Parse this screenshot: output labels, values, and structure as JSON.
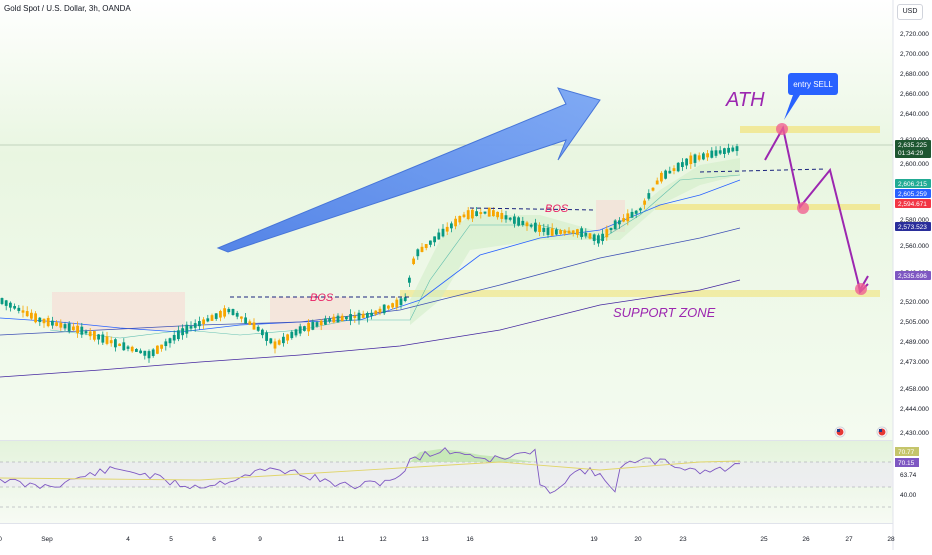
{
  "header": {
    "symbol_title": "Gold Spot / U.S. Dollar, 3h, OANDA",
    "currency": "USD"
  },
  "annotations": {
    "ath": "ATH",
    "entry_sell": "entry SELL",
    "bos": "BOS",
    "support_zone": "SUPPORT ZONE"
  },
  "price_axis": {
    "ticks": [
      "2,720.000",
      "2,700.000",
      "2,680.000",
      "2,660.000",
      "2,640.000",
      "2,620.000",
      "2,600.000",
      "2,580.000",
      "2,560.000",
      "2,540.000",
      "2,520.000",
      "2,505.000",
      "2,489.000",
      "2,473.000",
      "2,458.000",
      "2,444.000",
      "2,430.000"
    ],
    "price_labels": [
      {
        "text": "2,635.225",
        "sub": "01:34:29",
        "color": "#1e5631"
      },
      {
        "text": "2,606.215",
        "color": "#22ab94"
      },
      {
        "text": "2,605.259",
        "color": "#2962ff"
      },
      {
        "text": "2,594.671",
        "color": "#f23645"
      },
      {
        "text": "2,573.523",
        "color": "#2a2e9b"
      },
      {
        "text": "2,535.696",
        "color": "#7e57c2"
      }
    ]
  },
  "rsi_axis": {
    "ticks": [
      "63.74",
      "40.00"
    ],
    "labels": [
      {
        "text": "70.77",
        "color": "#c5c56b"
      },
      {
        "text": "70.15",
        "color": "#7e57c2"
      }
    ]
  },
  "time_axis": {
    "ticks": [
      "0",
      "Sep",
      "4",
      "5",
      "6",
      "9",
      "11",
      "12",
      "13",
      "16",
      "19",
      "20",
      "23",
      "25",
      "26",
      "27",
      "28"
    ]
  },
  "colors": {
    "up": "#089981",
    "down": "#f7a600",
    "arrow": "#5b8def",
    "projection": "#9c27b0",
    "zone": "#f2e27a",
    "accent": "#2962ff"
  }
}
